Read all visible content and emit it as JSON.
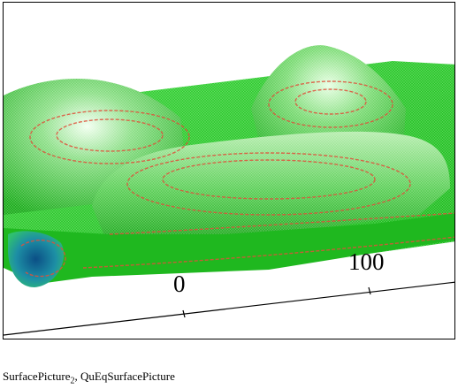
{
  "plot": {
    "surface_color": "#22cc22",
    "highlight_color": "#c8f0c0",
    "contour_color": "#e0503a",
    "valley_color": "#1a6fa0",
    "axis": {
      "tick_labels": [
        "0",
        "100"
      ]
    }
  },
  "caption": {
    "name1": "SurfacePicture",
    "subscript": "2",
    "separator": ", ",
    "name2": "QuEqSurfacePicture"
  }
}
